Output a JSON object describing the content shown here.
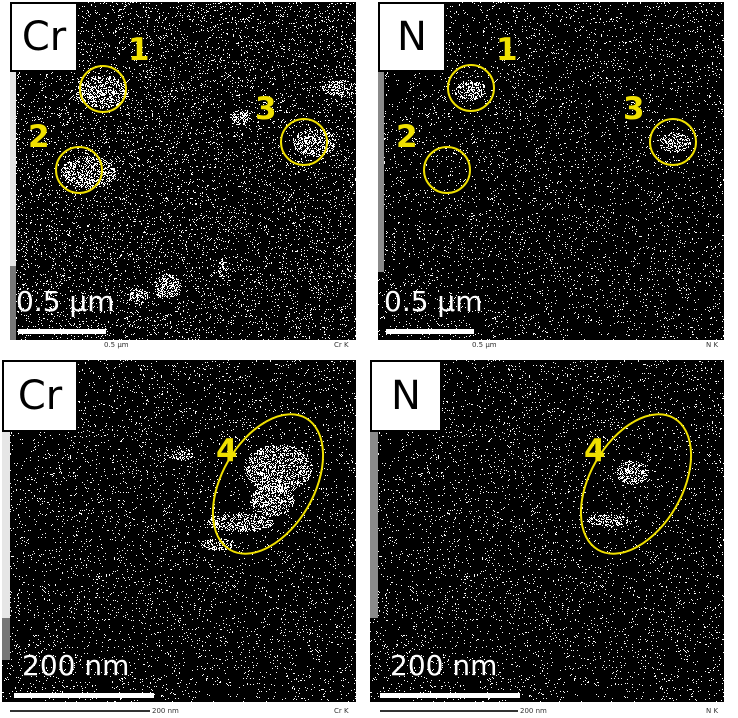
{
  "panels": [
    {
      "element": "Cr",
      "scale": "0.5 µm",
      "footer_scale": "0.5 µm",
      "footer_line": "Cr K",
      "markers": [
        "1",
        "2",
        "3"
      ]
    },
    {
      "element": "N",
      "scale": "0.5 µm",
      "footer_scale": "0.5 µm",
      "footer_line": "N K",
      "markers": [
        "1",
        "2",
        "3"
      ]
    },
    {
      "element": "Cr",
      "scale": "200 nm",
      "footer_scale": "200 nm",
      "footer_line": "Cr K",
      "markers": [
        "4"
      ]
    },
    {
      "element": "N",
      "scale": "200 nm",
      "footer_scale": "200 nm",
      "footer_line": "N K",
      "markers": [
        "4"
      ]
    }
  ],
  "colors": {
    "annotation": "#f0e000",
    "background": "#000000",
    "signal": "#ffffff"
  }
}
